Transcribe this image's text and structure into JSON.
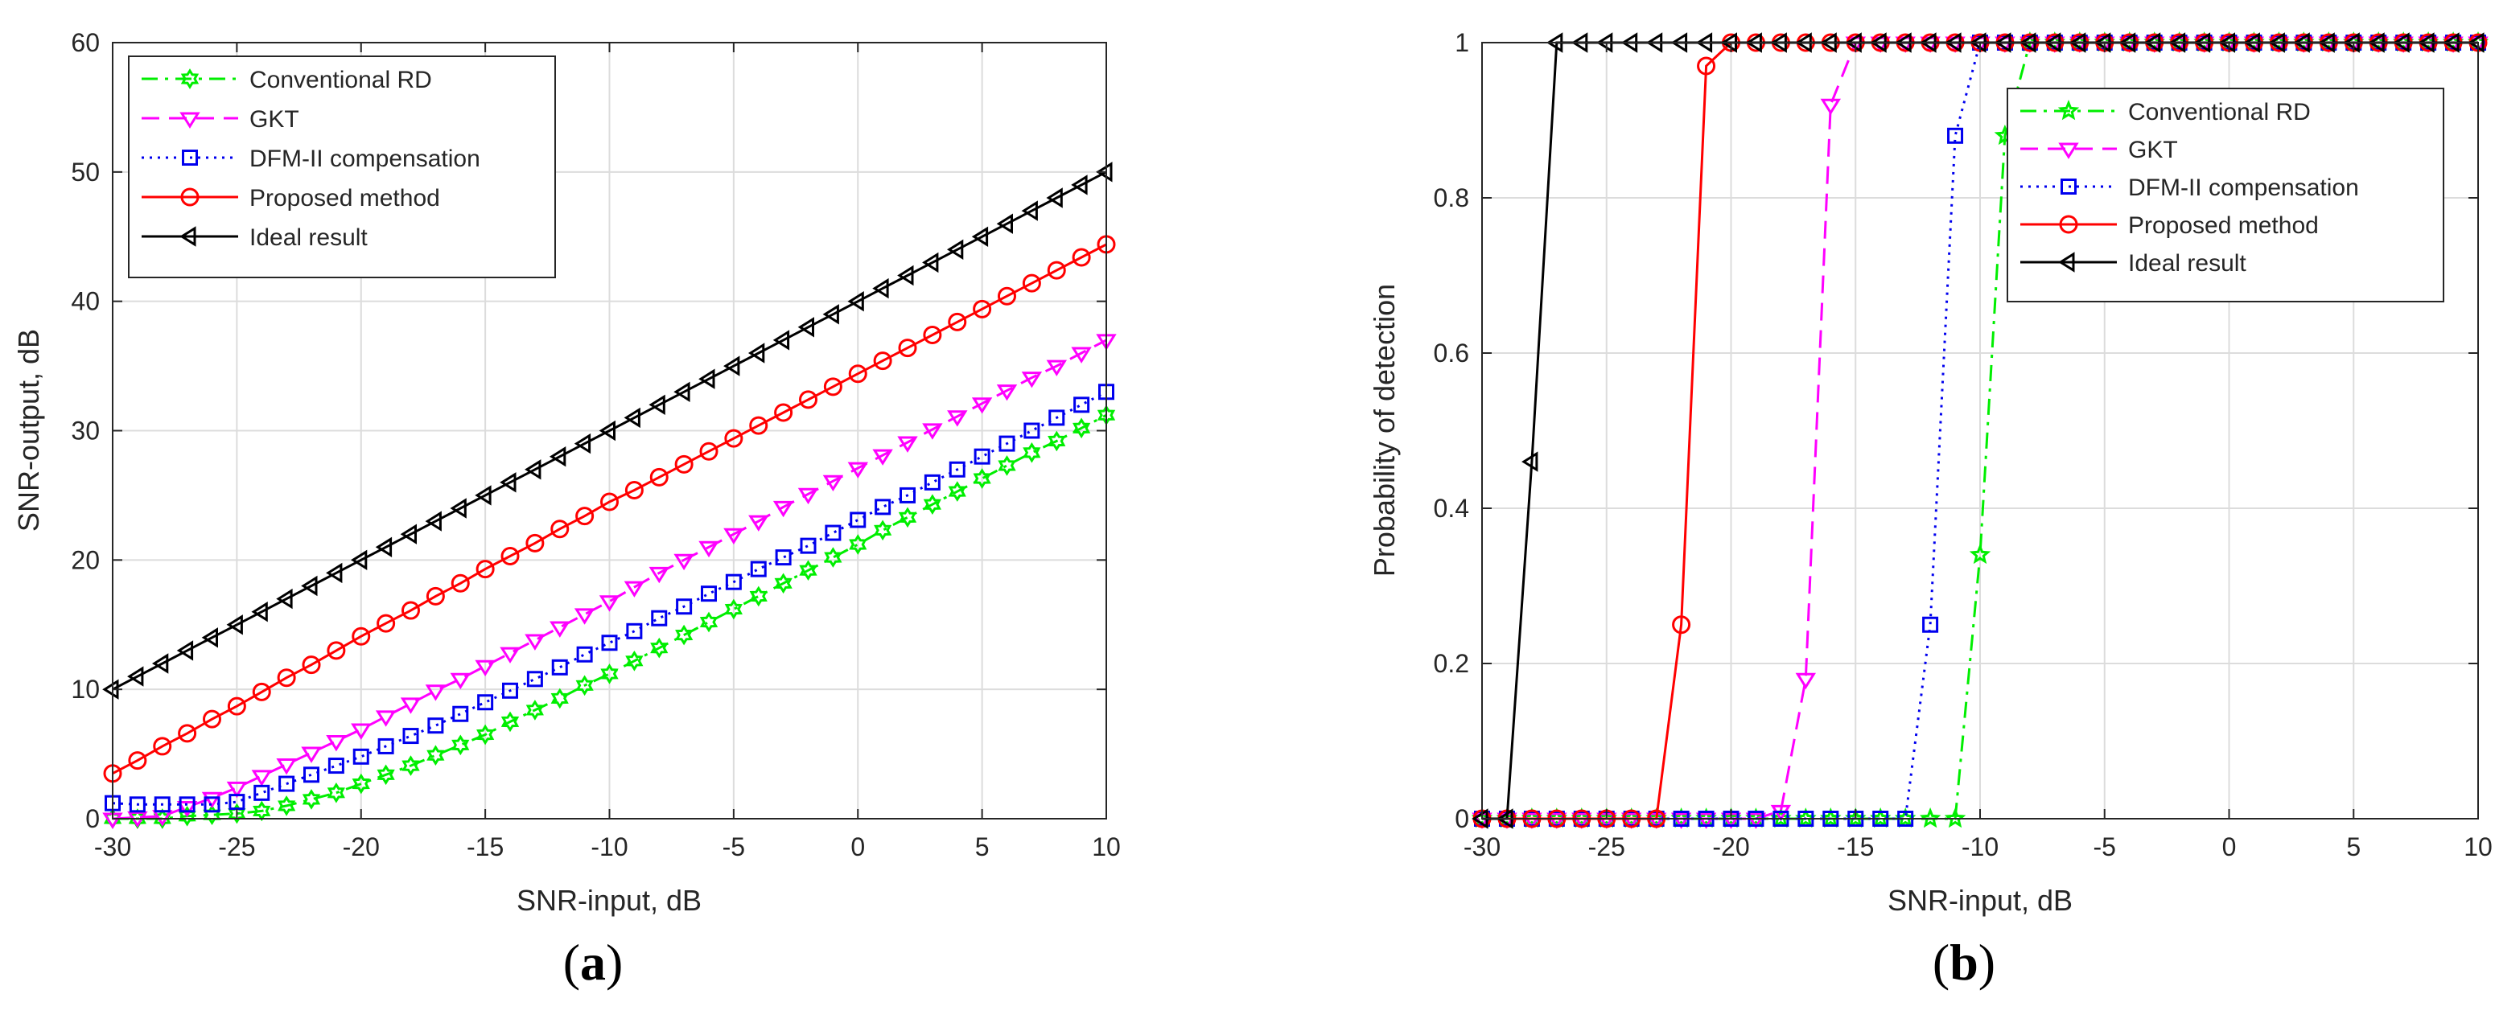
{
  "chart_data": [
    {
      "type": "line",
      "subplot_label": "a",
      "xlabel": "SNR-input, dB",
      "ylabel": "SNR-output, dB",
      "xlim": [
        -30,
        10
      ],
      "ylim": [
        0,
        60
      ],
      "xticks": [
        -30,
        -25,
        -20,
        -15,
        -10,
        -5,
        0,
        5,
        10
      ],
      "xtick_labels": [
        "-30",
        "-25",
        "-20",
        "-15",
        "-10",
        "-5",
        "0",
        "5",
        "10"
      ],
      "yticks": [
        0,
        10,
        20,
        30,
        40,
        50,
        60
      ],
      "ytick_labels": [
        "0",
        "10",
        "20",
        "30",
        "40",
        "50",
        "60"
      ],
      "grid": true,
      "legend_position": "top-left",
      "series": [
        {
          "name": "Conventional RD",
          "color": "#00ee00",
          "dash": "dashdot",
          "marker": "hexagram",
          "x": [
            -30,
            -29,
            -28,
            -27,
            -26,
            -25,
            -24,
            -23,
            -22,
            -21,
            -20,
            -19,
            -18,
            -17,
            -16,
            -15,
            -14,
            -13,
            -12,
            -11,
            -10,
            -9,
            -8,
            -7,
            -6,
            -5,
            -4,
            -3,
            -2,
            -1,
            0,
            1,
            2,
            3,
            4,
            5,
            6,
            7,
            8,
            9,
            10
          ],
          "y": [
            0,
            0,
            0,
            0.2,
            0.3,
            0.4,
            0.6,
            1,
            1.5,
            2,
            2.7,
            3.4,
            4.1,
            4.9,
            5.7,
            6.5,
            7.5,
            8.4,
            9.3,
            10.3,
            11.2,
            12.2,
            13.2,
            14.2,
            15.2,
            16.2,
            17.2,
            18.2,
            19.2,
            20.2,
            21.2,
            22.3,
            23.3,
            24.3,
            25.3,
            26.3,
            27.3,
            28.3,
            29.2,
            30.2,
            31.2
          ]
        },
        {
          "name": "GKT",
          "color": "#ff00ff",
          "dash": "dashed",
          "marker": "triangle-down",
          "x": [
            -30,
            -29,
            -28,
            -27,
            -26,
            -25,
            -24,
            -23,
            -22,
            -21,
            -20,
            -19,
            -18,
            -17,
            -16,
            -15,
            -14,
            -13,
            -12,
            -11,
            -10,
            -9,
            -8,
            -7,
            -6,
            -5,
            -4,
            -3,
            -2,
            -1,
            0,
            1,
            2,
            3,
            4,
            5,
            6,
            7,
            8,
            9,
            10
          ],
          "y": [
            0,
            0.1,
            0.2,
            0.9,
            1.6,
            2.4,
            3.3,
            4.2,
            5.1,
            6,
            6.9,
            7.9,
            8.9,
            9.9,
            10.8,
            11.8,
            12.8,
            13.8,
            14.8,
            15.8,
            16.8,
            17.9,
            19,
            20,
            21,
            22,
            23,
            24.1,
            25.1,
            26.1,
            27.1,
            28.1,
            29.1,
            30.1,
            31.1,
            32.1,
            33.1,
            34.1,
            35,
            36,
            37
          ]
        },
        {
          "name": "DFM-II compensation",
          "color": "#0000ee",
          "dash": "dotted",
          "marker": "square",
          "x": [
            -30,
            -29,
            -28,
            -27,
            -26,
            -25,
            -24,
            -23,
            -22,
            -21,
            -20,
            -19,
            -18,
            -17,
            -16,
            -15,
            -14,
            -13,
            -12,
            -11,
            -10,
            -9,
            -8,
            -7,
            -6,
            -5,
            -4,
            -3,
            -2,
            -1,
            0,
            1,
            2,
            3,
            4,
            5,
            6,
            7,
            8,
            9,
            10
          ],
          "y": [
            1.2,
            1.1,
            1.1,
            1.1,
            1.1,
            1.3,
            2,
            2.7,
            3.4,
            4.1,
            4.8,
            5.6,
            6.4,
            7.2,
            8.1,
            9,
            9.9,
            10.8,
            11.7,
            12.7,
            13.6,
            14.5,
            15.5,
            16.4,
            17.4,
            18.3,
            19.3,
            20.2,
            21.1,
            22.1,
            23.1,
            24.1,
            25,
            26,
            27,
            28,
            29,
            30,
            31,
            32,
            33
          ]
        },
        {
          "name": "Proposed method",
          "color": "#ff0000",
          "dash": "solid",
          "marker": "circle",
          "x": [
            -30,
            -29,
            -28,
            -27,
            -26,
            -25,
            -24,
            -23,
            -22,
            -21,
            -20,
            -19,
            -18,
            -17,
            -16,
            -15,
            -14,
            -13,
            -12,
            -11,
            -10,
            -9,
            -8,
            -7,
            -6,
            -5,
            -4,
            -3,
            -2,
            -1,
            0,
            1,
            2,
            3,
            4,
            5,
            6,
            7,
            8,
            9,
            10
          ],
          "y": [
            3.5,
            4.5,
            5.6,
            6.6,
            7.7,
            8.7,
            9.8,
            10.9,
            11.9,
            13,
            14.1,
            15.1,
            16.1,
            17.2,
            18.2,
            19.3,
            20.3,
            21.3,
            22.4,
            23.4,
            24.5,
            25.4,
            26.4,
            27.4,
            28.4,
            29.4,
            30.4,
            31.4,
            32.4,
            33.4,
            34.4,
            35.4,
            36.4,
            37.4,
            38.4,
            39.4,
            40.4,
            41.4,
            42.4,
            43.4,
            44.4
          ]
        },
        {
          "name": "Ideal result",
          "color": "#000000",
          "dash": "solid",
          "marker": "triangle-left",
          "x": [
            -30,
            -29,
            -28,
            -27,
            -26,
            -25,
            -24,
            -23,
            -22,
            -21,
            -20,
            -19,
            -18,
            -17,
            -16,
            -15,
            -14,
            -13,
            -12,
            -11,
            -10,
            -9,
            -8,
            -7,
            -6,
            -5,
            -4,
            -3,
            -2,
            -1,
            0,
            1,
            2,
            3,
            4,
            5,
            6,
            7,
            8,
            9,
            10
          ],
          "y": [
            10,
            11,
            12,
            13,
            14,
            15,
            16,
            17,
            18,
            19,
            20,
            21,
            22,
            23,
            24,
            25,
            26,
            27,
            28,
            29,
            30,
            31,
            32,
            33,
            34,
            35,
            36,
            37,
            38,
            39,
            40,
            41,
            42,
            43,
            44,
            45,
            46,
            47,
            48,
            49,
            50
          ]
        }
      ]
    },
    {
      "type": "line",
      "subplot_label": "b",
      "xlabel": "SNR-input, dB",
      "ylabel": "Probability of detection",
      "xlim": [
        -30,
        10
      ],
      "ylim": [
        0,
        1
      ],
      "xticks": [
        -30,
        -25,
        -20,
        -15,
        -10,
        -5,
        0,
        5,
        10
      ],
      "xtick_labels": [
        "-30",
        "-25",
        "-20",
        "-15",
        "-10",
        "-5",
        "0",
        "5",
        "10"
      ],
      "yticks": [
        0,
        0.2,
        0.4,
        0.6,
        0.8,
        1
      ],
      "ytick_labels": [
        "0",
        "0.2",
        "0.4",
        "0.6",
        "0.8",
        "1"
      ],
      "grid": true,
      "legend_position": "top-right",
      "series": [
        {
          "name": "Conventional RD",
          "color": "#00ee00",
          "dash": "dashdot",
          "marker": "pentagram",
          "x": [
            -30,
            -29,
            -28,
            -27,
            -26,
            -25,
            -24,
            -23,
            -22,
            -21,
            -20,
            -19,
            -18,
            -17,
            -16,
            -15,
            -14,
            -13,
            -12,
            -11,
            -10,
            -9,
            -8,
            -7,
            -6,
            -5,
            -4,
            -3,
            -2,
            -1,
            0,
            1,
            2,
            3,
            4,
            5,
            6,
            7,
            8,
            9,
            10
          ],
          "y": [
            0,
            0,
            0,
            0,
            0,
            0,
            0,
            0,
            0,
            0,
            0,
            0,
            0,
            0,
            0,
            0,
            0,
            0,
            0,
            0,
            0.34,
            0.88,
            1,
            1,
            1,
            1,
            1,
            1,
            1,
            1,
            1,
            1,
            1,
            1,
            1,
            1,
            1,
            1,
            1,
            1,
            1
          ]
        },
        {
          "name": "GKT",
          "color": "#ff00ff",
          "dash": "dashed",
          "marker": "triangle-down",
          "x": [
            -30,
            -29,
            -28,
            -27,
            -26,
            -25,
            -24,
            -23,
            -22,
            -21,
            -20,
            -19,
            -18,
            -17,
            -16,
            -15,
            -14,
            -13,
            -12,
            -11,
            -10,
            -9,
            -8,
            -7,
            -6,
            -5,
            -4,
            -3,
            -2,
            -1,
            0,
            1,
            2,
            3,
            4,
            5,
            6,
            7,
            8,
            9,
            10
          ],
          "y": [
            0,
            0,
            0,
            0,
            0,
            0,
            0,
            0,
            0,
            0,
            0,
            0,
            0.01,
            0.18,
            0.92,
            1,
            1,
            1,
            1,
            1,
            1,
            1,
            1,
            1,
            1,
            1,
            1,
            1,
            1,
            1,
            1,
            1,
            1,
            1,
            1,
            1,
            1,
            1,
            1,
            1,
            1
          ]
        },
        {
          "name": "DFM-II compensation",
          "color": "#0000ee",
          "dash": "dotted",
          "marker": "square",
          "x": [
            -30,
            -29,
            -28,
            -27,
            -26,
            -25,
            -24,
            -23,
            -22,
            -21,
            -20,
            -19,
            -18,
            -17,
            -16,
            -15,
            -14,
            -13,
            -12,
            -11,
            -10,
            -9,
            -8,
            -7,
            -6,
            -5,
            -4,
            -3,
            -2,
            -1,
            0,
            1,
            2,
            3,
            4,
            5,
            6,
            7,
            8,
            9,
            10
          ],
          "y": [
            0,
            0,
            0,
            0,
            0,
            0,
            0,
            0,
            0,
            0,
            0,
            0,
            0,
            0,
            0,
            0,
            0,
            0,
            0.25,
            0.88,
            1,
            1,
            1,
            1,
            1,
            1,
            1,
            1,
            1,
            1,
            1,
            1,
            1,
            1,
            1,
            1,
            1,
            1,
            1,
            1,
            1
          ]
        },
        {
          "name": "Proposed method",
          "color": "#ff0000",
          "dash": "solid",
          "marker": "circle",
          "x": [
            -30,
            -29,
            -28,
            -27,
            -26,
            -25,
            -24,
            -23,
            -22,
            -21,
            -20,
            -19,
            -18,
            -17,
            -16,
            -15,
            -14,
            -13,
            -12,
            -11,
            -10,
            -9,
            -8,
            -7,
            -6,
            -5,
            -4,
            -3,
            -2,
            -1,
            0,
            1,
            2,
            3,
            4,
            5,
            6,
            7,
            8,
            9,
            10
          ],
          "y": [
            0,
            0,
            0,
            0,
            0,
            0,
            0,
            0,
            0.25,
            0.97,
            1,
            1,
            1,
            1,
            1,
            1,
            1,
            1,
            1,
            1,
            1,
            1,
            1,
            1,
            1,
            1,
            1,
            1,
            1,
            1,
            1,
            1,
            1,
            1,
            1,
            1,
            1,
            1,
            1,
            1,
            1
          ]
        },
        {
          "name": "Ideal result",
          "color": "#000000",
          "dash": "solid",
          "marker": "triangle-left",
          "x": [
            -30,
            -29,
            -28,
            -27,
            -26,
            -25,
            -24,
            -23,
            -22,
            -21,
            -20,
            -19,
            -18,
            -17,
            -16,
            -15,
            -14,
            -13,
            -12,
            -11,
            -10,
            -9,
            -8,
            -7,
            -6,
            -5,
            -4,
            -3,
            -2,
            -1,
            0,
            1,
            2,
            3,
            4,
            5,
            6,
            7,
            8,
            9,
            10
          ],
          "y": [
            0,
            0,
            0.46,
            1,
            1,
            1,
            1,
            1,
            1,
            1,
            1,
            1,
            1,
            1,
            1,
            1,
            1,
            1,
            1,
            1,
            1,
            1,
            1,
            1,
            1,
            1,
            1,
            1,
            1,
            1,
            1,
            1,
            1,
            1,
            1,
            1,
            1,
            1,
            1,
            1,
            1
          ]
        }
      ]
    }
  ]
}
